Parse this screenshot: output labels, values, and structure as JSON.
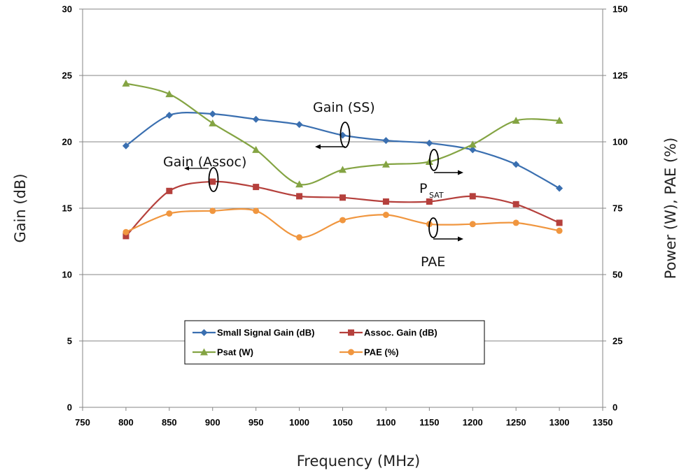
{
  "chart_data": {
    "type": "line",
    "xlabel": "Frequency (MHz)",
    "ylabel": "Gain (dB)",
    "y2label": "Power (W), PAE (%)",
    "xlim": [
      750,
      1350
    ],
    "ylim": [
      0,
      30
    ],
    "y2lim": [
      0,
      150
    ],
    "x_ticks": [
      "750",
      "800",
      "850",
      "900",
      "950",
      "1000",
      "1050",
      "1100",
      "1150",
      "1200",
      "1250",
      "1300",
      "1350"
    ],
    "y_ticks": [
      "0",
      "5",
      "10",
      "15",
      "20",
      "25",
      "30"
    ],
    "y2_ticks": [
      "0",
      "25",
      "50",
      "75",
      "100",
      "125",
      "150"
    ],
    "grid": "horizontal",
    "legend_position": "bottom-center",
    "series": [
      {
        "name": "Small Signal Gain (dB)",
        "axis": "left",
        "color": "#3A6FB0",
        "marker": "diamond",
        "x": [
          800,
          850,
          900,
          950,
          1000,
          1050,
          1100,
          1150,
          1200,
          1250,
          1300
        ],
        "y": [
          19.7,
          22.0,
          22.1,
          21.7,
          21.3,
          20.5,
          20.1,
          19.9,
          19.4,
          18.3,
          16.5
        ]
      },
      {
        "name": "Assoc. Gain (dB)",
        "axis": "left",
        "color": "#B5403C",
        "marker": "square",
        "x": [
          800,
          850,
          900,
          950,
          1000,
          1050,
          1100,
          1150,
          1200,
          1250,
          1300
        ],
        "y": [
          12.9,
          16.3,
          17.0,
          16.6,
          15.9,
          15.8,
          15.5,
          15.5,
          15.9,
          15.3,
          13.9
        ]
      },
      {
        "name": "Psat (W)",
        "axis": "right",
        "color": "#84A443",
        "marker": "triangle",
        "x": [
          800,
          850,
          900,
          950,
          1000,
          1050,
          1100,
          1150,
          1200,
          1250,
          1300
        ],
        "y": [
          122,
          118,
          107,
          97,
          84,
          89.5,
          91.5,
          92.5,
          99,
          108,
          108
        ]
      },
      {
        "name": "PAE (%)",
        "axis": "right",
        "color": "#F0963F",
        "marker": "circle",
        "x": [
          800,
          850,
          900,
          950,
          1000,
          1050,
          1100,
          1150,
          1200,
          1250,
          1300
        ],
        "y": [
          66,
          73,
          74,
          74,
          64,
          70.5,
          72.5,
          69,
          69,
          69.5,
          66.5
        ]
      }
    ],
    "annotations": [
      {
        "id": "gain-ss",
        "text": "Gain (SS)"
      },
      {
        "id": "gain-assoc",
        "text": "Gain (Assoc)"
      },
      {
        "id": "psat",
        "text": "P",
        "subscript": "SAT"
      },
      {
        "id": "pae",
        "text": "PAE"
      }
    ]
  }
}
